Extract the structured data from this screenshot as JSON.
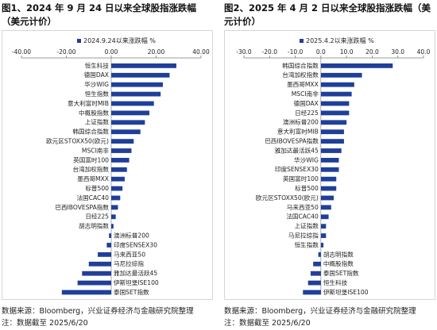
{
  "figures": [
    {
      "title": "图1、2024 年 9 月 24 日以来全球股指涨跌幅（美元计价）",
      "source_note": "数据来源：Bloomberg，兴业证券经济与金融研究院整理",
      "date_note": "注：数据截至 2025/6/20"
    },
    {
      "title": "图2、2025 年 4 月 2 日以来全球股指涨跌幅（美元计价）",
      "source_note": "数据来源：Bloomberg，兴业证券经济与金融研究院整理",
      "date_note": "注：数据截至 2025/6/20"
    }
  ],
  "colors": {
    "bar": "#1f3f99",
    "axis": "#7a7a7a",
    "text": "#222222"
  },
  "chart_data": [
    {
      "type": "bar",
      "orientation": "horizontal",
      "legend": "2024.9.24以来涨跌幅 %",
      "legend_position": "top-left",
      "xlim": [
        -40,
        40
      ],
      "xticks": [
        "-40.00",
        "-20.00",
        "0.00",
        "20.00",
        "40.00"
      ],
      "xtick_values": [
        -40,
        -20,
        0,
        20,
        40
      ],
      "grid": false,
      "categories": [
        "恒生科技",
        "德国DAX",
        "华沙WIG",
        "恒生指数",
        "意大利富时MIB",
        "中概股指数",
        "上证指数",
        "韩国综合指数",
        "欧元区STOXX50(欧元)",
        "MSCI南非",
        "英国富时100",
        "台湾加权指数",
        "墨西哥MXX",
        "标普500",
        "法国CAC40",
        "巴西IBOVESPA指数",
        "日经225",
        "胡志明指数",
        "澳洲标普200",
        "印度SENSEX30",
        "马来西亚50",
        "马尼拉综指",
        "雅加达最活跃45",
        "伊斯坦堡ISE100",
        "泰国SET指数"
      ],
      "values": [
        29,
        26,
        23,
        22,
        19,
        17,
        15,
        13,
        10,
        9,
        8,
        7,
        6,
        5,
        4,
        3,
        2,
        1,
        -1,
        -2,
        -6,
        -10,
        -13,
        -15,
        -22
      ]
    },
    {
      "type": "bar",
      "orientation": "horizontal",
      "legend": "2025.4.2以来涨跌幅 %",
      "legend_position": "top-left",
      "xlim": [
        -30,
        40
      ],
      "xticks": [
        "-30.0",
        "-20.0",
        "-10.0",
        "0.0",
        "10.0",
        "20.0",
        "30.0",
        "40.0"
      ],
      "xtick_values": [
        -30,
        -20,
        -10,
        0,
        10,
        20,
        30,
        40
      ],
      "grid": false,
      "categories": [
        "韩国综合指数",
        "台湾加权指数",
        "墨西哥MXX",
        "MSCI南非",
        "德国DAX",
        "日经225",
        "澳洲标普200",
        "意大利富时MIB",
        "巴西IBOVESPA指数",
        "雅加达最活跃45",
        "华沙WIG",
        "印度SENSEX30",
        "英国富时100",
        "标普500",
        "欧元区STOXX50(欧元)",
        "马来西亚50",
        "法国CAC40",
        "上证指数",
        "马尼拉综指",
        "恒生指数",
        "胡志明指数",
        "中概股指数",
        "泰国SET指数",
        "恒生科技",
        "伊斯坦堡ISE100"
      ],
      "values": [
        28,
        16,
        13,
        12,
        11,
        11,
        10,
        9,
        9,
        8,
        7,
        7,
        6,
        6,
        5,
        4,
        3,
        2,
        2,
        1,
        -1,
        -3,
        -4,
        -5,
        -7
      ]
    }
  ]
}
